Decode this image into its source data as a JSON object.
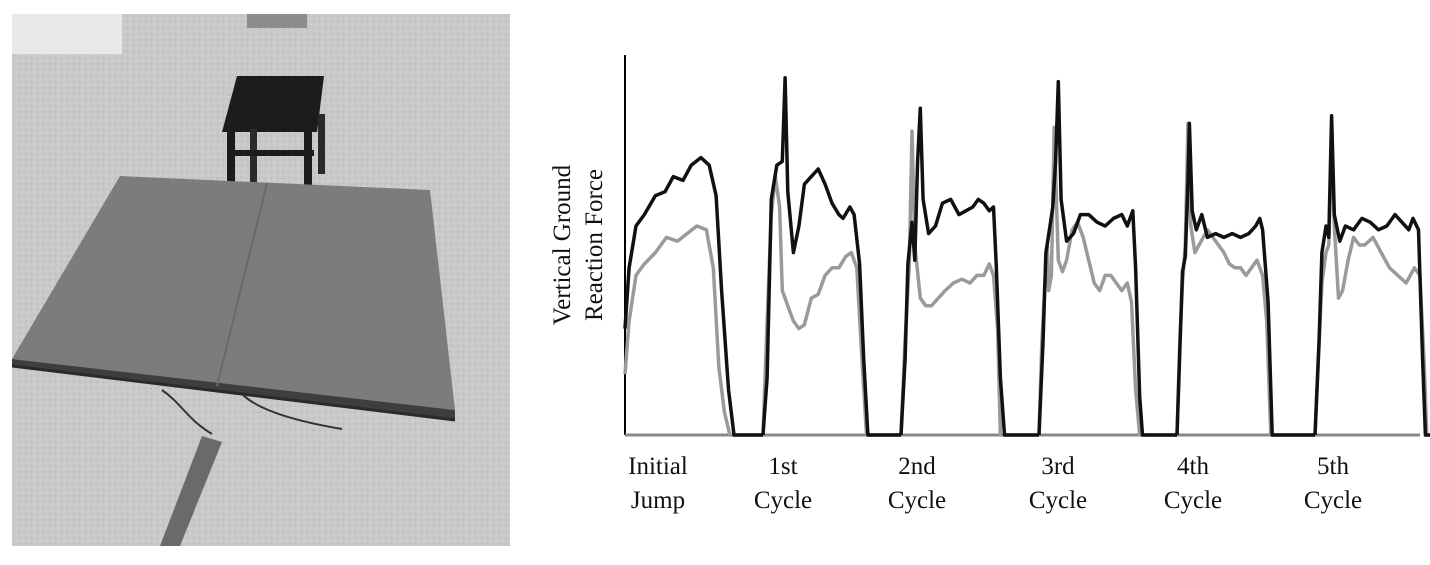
{
  "photo": {
    "alt_subject": "force-plate-with-box"
  },
  "chart_data": {
    "type": "line",
    "ylabel_lines": [
      "Vertical Ground",
      "Reaction Force"
    ],
    "xlabel": "",
    "categories": [
      {
        "line1": "Initial",
        "line2": "Jump"
      },
      {
        "line1": "1st",
        "line2": "Cycle"
      },
      {
        "line1": "2nd",
        "line2": "Cycle"
      },
      {
        "line1": "3rd",
        "line2": "Cycle"
      },
      {
        "line1": "4th",
        "line2": "Cycle"
      },
      {
        "line1": "5th",
        "line2": "Cycle"
      }
    ],
    "y_ticks_shown": false,
    "ylim": [
      0,
      1
    ],
    "series": [
      {
        "color": "#111111",
        "segments": [
          [
            [
              0.0,
              0.28
            ],
            [
              0.03,
              0.44
            ],
            [
              0.08,
              0.55
            ],
            [
              0.14,
              0.58
            ],
            [
              0.22,
              0.63
            ],
            [
              0.29,
              0.64
            ],
            [
              0.35,
              0.68
            ],
            [
              0.42,
              0.67
            ],
            [
              0.48,
              0.71
            ],
            [
              0.55,
              0.73
            ],
            [
              0.61,
              0.71
            ],
            [
              0.66,
              0.63
            ],
            [
              0.7,
              0.38
            ],
            [
              0.75,
              0.12
            ],
            [
              0.79,
              0.0
            ],
            [
              1.0,
              0.0
            ]
          ],
          [
            [
              0.0,
              0.0
            ],
            [
              0.03,
              0.15
            ],
            [
              0.06,
              0.62
            ],
            [
              0.1,
              0.71
            ],
            [
              0.14,
              0.72
            ],
            [
              0.16,
              0.94
            ],
            [
              0.18,
              0.64
            ],
            [
              0.22,
              0.48
            ],
            [
              0.26,
              0.55
            ],
            [
              0.3,
              0.66
            ],
            [
              0.35,
              0.68
            ],
            [
              0.4,
              0.7
            ],
            [
              0.45,
              0.66
            ],
            [
              0.5,
              0.61
            ],
            [
              0.55,
              0.58
            ],
            [
              0.58,
              0.57
            ],
            [
              0.63,
              0.6
            ],
            [
              0.66,
              0.58
            ],
            [
              0.7,
              0.45
            ],
            [
              0.73,
              0.2
            ],
            [
              0.76,
              0.0
            ],
            [
              1.0,
              0.0
            ]
          ],
          [
            [
              0.0,
              0.0
            ],
            [
              0.03,
              0.2
            ],
            [
              0.05,
              0.45
            ],
            [
              0.08,
              0.56
            ],
            [
              0.1,
              0.46
            ],
            [
              0.12,
              0.72
            ],
            [
              0.14,
              0.86
            ],
            [
              0.16,
              0.62
            ],
            [
              0.2,
              0.53
            ],
            [
              0.25,
              0.55
            ],
            [
              0.3,
              0.61
            ],
            [
              0.36,
              0.62
            ],
            [
              0.42,
              0.58
            ],
            [
              0.47,
              0.59
            ],
            [
              0.52,
              0.6
            ],
            [
              0.56,
              0.62
            ],
            [
              0.6,
              0.61
            ],
            [
              0.64,
              0.59
            ],
            [
              0.67,
              0.6
            ],
            [
              0.69,
              0.45
            ],
            [
              0.72,
              0.15
            ],
            [
              0.75,
              0.0
            ],
            [
              1.0,
              0.0
            ]
          ],
          [
            [
              0.0,
              0.0
            ],
            [
              0.03,
              0.25
            ],
            [
              0.05,
              0.48
            ],
            [
              0.08,
              0.55
            ],
            [
              0.1,
              0.6
            ],
            [
              0.12,
              0.72
            ],
            [
              0.14,
              0.93
            ],
            [
              0.16,
              0.62
            ],
            [
              0.2,
              0.51
            ],
            [
              0.25,
              0.53
            ],
            [
              0.3,
              0.58
            ],
            [
              0.36,
              0.58
            ],
            [
              0.42,
              0.56
            ],
            [
              0.48,
              0.55
            ],
            [
              0.54,
              0.57
            ],
            [
              0.6,
              0.58
            ],
            [
              0.64,
              0.55
            ],
            [
              0.68,
              0.59
            ],
            [
              0.7,
              0.44
            ],
            [
              0.73,
              0.1
            ],
            [
              0.75,
              0.0
            ],
            [
              1.0,
              0.0
            ]
          ],
          [
            [
              0.0,
              0.0
            ],
            [
              0.02,
              0.22
            ],
            [
              0.04,
              0.43
            ],
            [
              0.06,
              0.47
            ],
            [
              0.08,
              0.67
            ],
            [
              0.09,
              0.82
            ],
            [
              0.11,
              0.59
            ],
            [
              0.14,
              0.54
            ],
            [
              0.18,
              0.58
            ],
            [
              0.22,
              0.52
            ],
            [
              0.28,
              0.53
            ],
            [
              0.34,
              0.52
            ],
            [
              0.4,
              0.53
            ],
            [
              0.46,
              0.52
            ],
            [
              0.52,
              0.53
            ],
            [
              0.57,
              0.55
            ],
            [
              0.6,
              0.57
            ],
            [
              0.62,
              0.54
            ],
            [
              0.66,
              0.35
            ],
            [
              0.69,
              0.0
            ],
            [
              1.0,
              0.0
            ]
          ],
          [
            [
              0.0,
              0.0
            ],
            [
              0.03,
              0.25
            ],
            [
              0.05,
              0.48
            ],
            [
              0.08,
              0.55
            ],
            [
              0.1,
              0.52
            ],
            [
              0.12,
              0.84
            ],
            [
              0.14,
              0.58
            ],
            [
              0.18,
              0.51
            ],
            [
              0.22,
              0.55
            ],
            [
              0.28,
              0.54
            ],
            [
              0.34,
              0.57
            ],
            [
              0.4,
              0.56
            ],
            [
              0.46,
              0.54
            ],
            [
              0.52,
              0.55
            ],
            [
              0.58,
              0.58
            ],
            [
              0.63,
              0.56
            ],
            [
              0.68,
              0.54
            ],
            [
              0.71,
              0.57
            ],
            [
              0.75,
              0.54
            ],
            [
              0.78,
              0.2
            ],
            [
              0.8,
              0.0
            ],
            [
              1.0,
              0.0
            ]
          ]
        ]
      },
      {
        "color": "#9a9a9a",
        "segments": [
          [
            [
              0.0,
              0.16
            ],
            [
              0.03,
              0.3
            ],
            [
              0.08,
              0.42
            ],
            [
              0.14,
              0.45
            ],
            [
              0.22,
              0.48
            ],
            [
              0.3,
              0.52
            ],
            [
              0.38,
              0.51
            ],
            [
              0.45,
              0.53
            ],
            [
              0.52,
              0.55
            ],
            [
              0.59,
              0.54
            ],
            [
              0.64,
              0.44
            ],
            [
              0.68,
              0.18
            ],
            [
              0.72,
              0.06
            ],
            [
              0.76,
              0.0
            ],
            [
              1.0,
              0.0
            ]
          ],
          [
            [
              0.0,
              0.0
            ],
            [
              0.03,
              0.3
            ],
            [
              0.06,
              0.58
            ],
            [
              0.09,
              0.68
            ],
            [
              0.12,
              0.6
            ],
            [
              0.14,
              0.38
            ],
            [
              0.18,
              0.34
            ],
            [
              0.22,
              0.3
            ],
            [
              0.26,
              0.28
            ],
            [
              0.3,
              0.29
            ],
            [
              0.35,
              0.36
            ],
            [
              0.4,
              0.37
            ],
            [
              0.45,
              0.42
            ],
            [
              0.5,
              0.44
            ],
            [
              0.55,
              0.44
            ],
            [
              0.6,
              0.47
            ],
            [
              0.64,
              0.48
            ],
            [
              0.68,
              0.44
            ],
            [
              0.72,
              0.18
            ],
            [
              0.75,
              0.0
            ],
            [
              1.0,
              0.0
            ]
          ],
          [
            [
              0.0,
              0.0
            ],
            [
              0.03,
              0.25
            ],
            [
              0.06,
              0.45
            ],
            [
              0.08,
              0.8
            ],
            [
              0.1,
              0.5
            ],
            [
              0.14,
              0.36
            ],
            [
              0.18,
              0.34
            ],
            [
              0.22,
              0.34
            ],
            [
              0.27,
              0.36
            ],
            [
              0.32,
              0.38
            ],
            [
              0.38,
              0.4
            ],
            [
              0.44,
              0.41
            ],
            [
              0.5,
              0.4
            ],
            [
              0.55,
              0.42
            ],
            [
              0.6,
              0.42
            ],
            [
              0.64,
              0.45
            ],
            [
              0.67,
              0.42
            ],
            [
              0.7,
              0.28
            ],
            [
              0.72,
              0.0
            ],
            [
              1.0,
              0.0
            ]
          ],
          [
            [
              0.0,
              0.0
            ],
            [
              0.02,
              0.24
            ],
            [
              0.04,
              0.38
            ],
            [
              0.06,
              0.5
            ],
            [
              0.07,
              0.38
            ],
            [
              0.09,
              0.42
            ],
            [
              0.11,
              0.81
            ],
            [
              0.14,
              0.46
            ],
            [
              0.17,
              0.43
            ],
            [
              0.2,
              0.46
            ],
            [
              0.24,
              0.54
            ],
            [
              0.28,
              0.56
            ],
            [
              0.32,
              0.52
            ],
            [
              0.36,
              0.46
            ],
            [
              0.4,
              0.4
            ],
            [
              0.44,
              0.38
            ],
            [
              0.48,
              0.42
            ],
            [
              0.52,
              0.42
            ],
            [
              0.56,
              0.4
            ],
            [
              0.6,
              0.38
            ],
            [
              0.64,
              0.4
            ],
            [
              0.67,
              0.35
            ],
            [
              0.7,
              0.12
            ],
            [
              0.73,
              0.0
            ],
            [
              1.0,
              0.0
            ]
          ],
          [
            [
              0.0,
              0.0
            ],
            [
              0.02,
              0.25
            ],
            [
              0.04,
              0.4
            ],
            [
              0.06,
              0.5
            ],
            [
              0.08,
              0.82
            ],
            [
              0.1,
              0.55
            ],
            [
              0.13,
              0.48
            ],
            [
              0.16,
              0.5
            ],
            [
              0.19,
              0.52
            ],
            [
              0.22,
              0.54
            ],
            [
              0.26,
              0.52
            ],
            [
              0.3,
              0.5
            ],
            [
              0.34,
              0.48
            ],
            [
              0.38,
              0.45
            ],
            [
              0.42,
              0.44
            ],
            [
              0.46,
              0.44
            ],
            [
              0.5,
              0.42
            ],
            [
              0.54,
              0.44
            ],
            [
              0.58,
              0.46
            ],
            [
              0.62,
              0.42
            ],
            [
              0.65,
              0.3
            ],
            [
              0.68,
              0.0
            ],
            [
              1.0,
              0.0
            ]
          ],
          [
            [
              0.0,
              0.0
            ],
            [
              0.03,
              0.24
            ],
            [
              0.05,
              0.4
            ],
            [
              0.08,
              0.48
            ],
            [
              0.1,
              0.5
            ],
            [
              0.12,
              0.8
            ],
            [
              0.14,
              0.55
            ],
            [
              0.17,
              0.36
            ],
            [
              0.2,
              0.38
            ],
            [
              0.24,
              0.46
            ],
            [
              0.28,
              0.52
            ],
            [
              0.32,
              0.5
            ],
            [
              0.36,
              0.5
            ],
            [
              0.42,
              0.52
            ],
            [
              0.48,
              0.48
            ],
            [
              0.54,
              0.44
            ],
            [
              0.6,
              0.42
            ],
            [
              0.66,
              0.4
            ],
            [
              0.72,
              0.44
            ],
            [
              0.76,
              0.42
            ],
            [
              0.79,
              0.2
            ],
            [
              0.81,
              0.0
            ],
            [
              1.0,
              0.0
            ]
          ]
        ]
      }
    ]
  }
}
